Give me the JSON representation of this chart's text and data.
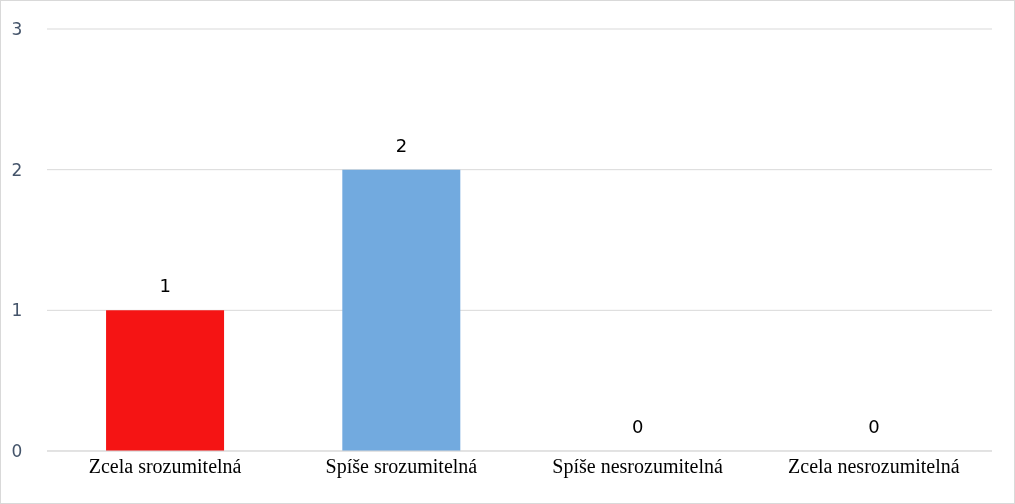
{
  "chart_data": {
    "type": "bar",
    "categories": [
      "Zcela srozumitelná",
      "Spíše srozumitelná",
      "Spíše nesrozumitelná",
      "Zcela nesrozumitelná"
    ],
    "values": [
      1,
      2,
      0,
      0
    ],
    "colors": [
      "#f51414",
      "#72aadf",
      "#72aadf",
      "#72aadf"
    ],
    "ylim": [
      0,
      3
    ],
    "yticks": [
      0,
      1,
      2,
      3
    ],
    "grid": "y",
    "data_labels": true
  }
}
